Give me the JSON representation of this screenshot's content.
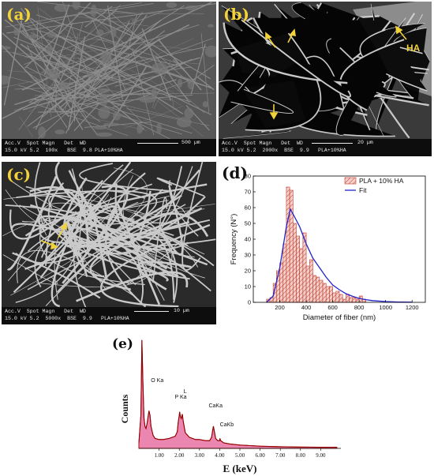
{
  "panels": {
    "a": {
      "label": "(a)",
      "databar": {
        "header": "Acc.V  Spot Magn   Det  WD",
        "values": "15.0 kV 5.2  100x   BSE  9.8",
        "sample": "PLA+10%HA",
        "scale": "500 µm"
      }
    },
    "b": {
      "label": "(b)",
      "annotation": "HA",
      "databar": {
        "header": "Acc.V  Spot Magn   Det  WD",
        "values": "15.0 kV 5.2  2000x  BSE  9.9",
        "sample": "PLA+10%HA",
        "scale": "20 µm"
      }
    },
    "c": {
      "label": "(c)",
      "databar": {
        "header": "Acc.V  Spot Magn   Det  WD",
        "values": "15.0 kV 5.2  5000x  BSE  9.9",
        "sample": "PLA+10%HA",
        "scale": "10 µm"
      }
    },
    "d": {
      "label": "(d)"
    },
    "e": {
      "label": "(e)"
    }
  },
  "chart_data": [
    {
      "type": "bar",
      "xlabel": "Diameter of fiber (nm)",
      "ylabel": "Frequency (N°)",
      "xlim": [
        0,
        1300
      ],
      "ylim": [
        0,
        80
      ],
      "x_ticks": [
        "200",
        "400",
        "600",
        "800",
        "1000",
        "1200"
      ],
      "y_ticks": [
        "0",
        "10",
        "20",
        "30",
        "40",
        "50",
        "60",
        "70",
        "80"
      ],
      "bin_width": 25,
      "bin_centers": [
        112.5,
        137.5,
        162.5,
        187.5,
        212.5,
        237.5,
        262.5,
        287.5,
        312.5,
        337.5,
        362.5,
        387.5,
        412.5,
        437.5,
        462.5,
        487.5,
        512.5,
        537.5,
        562.5,
        587.5,
        612.5,
        637.5,
        662.5,
        687.5,
        712.5,
        737.5,
        762.5,
        787.5,
        812.5,
        837.5
      ],
      "values": [
        2,
        3,
        12,
        20,
        25,
        37,
        73,
        71,
        50,
        42,
        34,
        44,
        23,
        27,
        17,
        16,
        14,
        12,
        10,
        10,
        6,
        7,
        5,
        2,
        5,
        3,
        3,
        2,
        4,
        2
      ],
      "series": [
        {
          "name": "PLA + 10% HA",
          "kind": "histogram",
          "color": "#e8a49a",
          "edge": "#c0392b"
        },
        {
          "name": "Fit",
          "kind": "line",
          "color": "#2222cc"
        }
      ],
      "fit": {
        "x": [
          100,
          150,
          200,
          250,
          280,
          300,
          350,
          400,
          450,
          500,
          550,
          600,
          650,
          700,
          750,
          800,
          850,
          900,
          1000,
          1100,
          1200
        ],
        "y": [
          0,
          4,
          22,
          48,
          59,
          56,
          48,
          37,
          28,
          22,
          16,
          11,
          8,
          5.5,
          3.8,
          2.5,
          1.7,
          1.1,
          0.5,
          0.2,
          0.1
        ]
      },
      "legend": "top-right",
      "grid": false
    },
    {
      "type": "line",
      "xlabel": "E (keV)",
      "ylabel": "Counts",
      "xlim": [
        0,
        10
      ],
      "x_ticks": [
        "1.00",
        "2.00",
        "3.00",
        "4.00",
        "5.00",
        "6.00",
        "7.00",
        "8.00",
        "9.00"
      ],
      "peaks": [
        {
          "label": "O Ka",
          "x": 0.52
        },
        {
          "label": "P Ka",
          "x": 2.01
        },
        {
          "label": "L",
          "x": 2.14
        },
        {
          "label": "CaKa",
          "x": 3.69
        },
        {
          "label": "CaKb",
          "x": 4.01
        }
      ],
      "spectrum": {
        "x": [
          0.0,
          0.1,
          0.15,
          0.2,
          0.25,
          0.3,
          0.35,
          0.4,
          0.45,
          0.5,
          0.55,
          0.6,
          0.7,
          0.8,
          1.0,
          1.2,
          1.5,
          1.8,
          1.9,
          1.95,
          2.0,
          2.02,
          2.05,
          2.1,
          2.15,
          2.2,
          2.3,
          2.5,
          2.8,
          3.0,
          3.3,
          3.5,
          3.6,
          3.65,
          3.69,
          3.75,
          3.8,
          3.9,
          4.0,
          4.01,
          4.05,
          4.2,
          4.5,
          5.0,
          5.5,
          6.0,
          7.0,
          8.0,
          9.0,
          9.8
        ],
        "y": [
          0.05,
          0.3,
          0.98,
          0.6,
          0.28,
          0.2,
          0.18,
          0.22,
          0.28,
          0.34,
          0.3,
          0.2,
          0.12,
          0.09,
          0.08,
          0.08,
          0.09,
          0.11,
          0.15,
          0.24,
          0.3,
          0.33,
          0.29,
          0.27,
          0.31,
          0.24,
          0.14,
          0.1,
          0.08,
          0.08,
          0.07,
          0.07,
          0.1,
          0.16,
          0.2,
          0.14,
          0.09,
          0.07,
          0.07,
          0.09,
          0.07,
          0.05,
          0.04,
          0.03,
          0.025,
          0.02,
          0.015,
          0.012,
          0.01,
          0.01
        ]
      },
      "color": "#cc0000"
    }
  ]
}
